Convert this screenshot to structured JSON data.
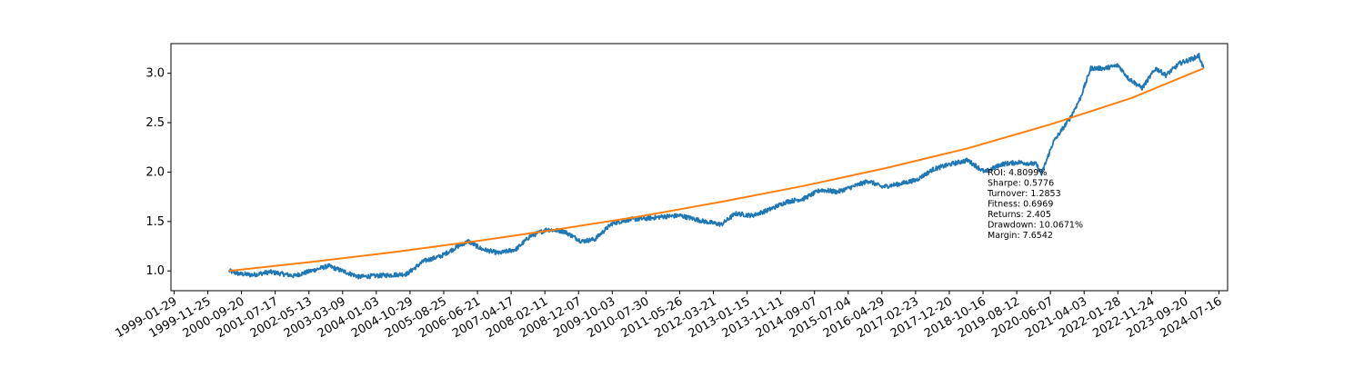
{
  "chart_data": {
    "type": "line",
    "title": "",
    "xlabel": "",
    "ylabel": "",
    "ylim": [
      0.8,
      3.3
    ],
    "xlim": [
      "1999-01-01",
      "2024-10-01"
    ],
    "grid": false,
    "legend": "none",
    "yticks": [
      "1.0",
      "1.5",
      "2.0",
      "2.5",
      "3.0"
    ],
    "xticks": [
      "1999-01-29",
      "1999-11-25",
      "2000-09-20",
      "2001-07-17",
      "2002-05-13",
      "2003-03-09",
      "2004-01-03",
      "2004-10-29",
      "2005-08-25",
      "2006-06-21",
      "2007-04-17",
      "2008-02-11",
      "2008-12-07",
      "2009-10-03",
      "2010-07-30",
      "2011-05-26",
      "2012-03-21",
      "2013-01-15",
      "2013-11-11",
      "2014-09-07",
      "2015-07-04",
      "2016-04-29",
      "2017-02-23",
      "2017-12-20",
      "2018-10-16",
      "2019-08-12",
      "2020-06-07",
      "2021-04-03",
      "2022-01-28",
      "2022-11-24",
      "2023-09-20",
      "2024-07-16"
    ],
    "series": [
      {
        "color": "#1f77b4",
        "points": [
          [
            "2000-06-01",
            1.0
          ],
          [
            "2000-09-01",
            0.97
          ],
          [
            "2001-01-01",
            0.96
          ],
          [
            "2001-06-01",
            0.99
          ],
          [
            "2002-01-01",
            0.95
          ],
          [
            "2002-06-01",
            1.0
          ],
          [
            "2002-11-01",
            1.05
          ],
          [
            "2003-04-01",
            0.99
          ],
          [
            "2003-08-01",
            0.94
          ],
          [
            "2004-01-01",
            0.95
          ],
          [
            "2004-06-01",
            0.96
          ],
          [
            "2004-10-01",
            0.97
          ],
          [
            "2005-03-01",
            1.1
          ],
          [
            "2005-08-01",
            1.15
          ],
          [
            "2006-01-01",
            1.25
          ],
          [
            "2006-04-01",
            1.3
          ],
          [
            "2006-08-01",
            1.22
          ],
          [
            "2007-01-01",
            1.18
          ],
          [
            "2007-06-01",
            1.22
          ],
          [
            "2007-10-01",
            1.35
          ],
          [
            "2008-03-01",
            1.42
          ],
          [
            "2008-08-01",
            1.4
          ],
          [
            "2009-01-01",
            1.3
          ],
          [
            "2009-05-01",
            1.32
          ],
          [
            "2009-10-01",
            1.48
          ],
          [
            "2010-03-01",
            1.52
          ],
          [
            "2010-08-01",
            1.53
          ],
          [
            "2011-01-01",
            1.55
          ],
          [
            "2011-06-01",
            1.56
          ],
          [
            "2012-01-01",
            1.5
          ],
          [
            "2012-06-01",
            1.47
          ],
          [
            "2012-10-01",
            1.58
          ],
          [
            "2013-03-01",
            1.56
          ],
          [
            "2013-08-01",
            1.62
          ],
          [
            "2014-01-01",
            1.7
          ],
          [
            "2014-06-01",
            1.73
          ],
          [
            "2014-11-01",
            1.82
          ],
          [
            "2015-04-01",
            1.8
          ],
          [
            "2015-09-01",
            1.86
          ],
          [
            "2016-01-01",
            1.91
          ],
          [
            "2016-05-01",
            1.85
          ],
          [
            "2016-10-01",
            1.88
          ],
          [
            "2017-03-01",
            1.92
          ],
          [
            "2017-08-01",
            2.03
          ],
          [
            "2018-01-01",
            2.08
          ],
          [
            "2018-06-01",
            2.12
          ],
          [
            "2018-11-01",
            2.0
          ],
          [
            "2019-04-01",
            2.08
          ],
          [
            "2019-09-01",
            2.1
          ],
          [
            "2020-02-01",
            2.08
          ],
          [
            "2020-03-20",
            1.98
          ],
          [
            "2020-07-01",
            2.3
          ],
          [
            "2020-12-01",
            2.55
          ],
          [
            "2021-03-01",
            2.75
          ],
          [
            "2021-06-01",
            3.05
          ],
          [
            "2021-10-01",
            3.05
          ],
          [
            "2022-02-01",
            3.08
          ],
          [
            "2022-05-01",
            2.95
          ],
          [
            "2022-09-01",
            2.85
          ],
          [
            "2023-01-01",
            3.05
          ],
          [
            "2023-04-01",
            2.98
          ],
          [
            "2023-08-01",
            3.1
          ],
          [
            "2023-12-01",
            3.15
          ],
          [
            "2024-01-20",
            3.18
          ],
          [
            "2024-03-01",
            3.05
          ]
        ]
      },
      {
        "color": "#ff7f0e",
        "points": [
          [
            "2000-06-01",
            1.0
          ],
          [
            "2002-06-01",
            1.09
          ],
          [
            "2004-06-01",
            1.19
          ],
          [
            "2006-06-01",
            1.3
          ],
          [
            "2008-06-01",
            1.42
          ],
          [
            "2010-06-01",
            1.55
          ],
          [
            "2012-06-01",
            1.7
          ],
          [
            "2014-06-01",
            1.86
          ],
          [
            "2016-06-01",
            2.04
          ],
          [
            "2018-06-01",
            2.24
          ],
          [
            "2020-06-01",
            2.48
          ],
          [
            "2022-06-01",
            2.75
          ],
          [
            "2024-03-01",
            3.05
          ]
        ]
      }
    ],
    "annotation": [
      "ROI: 4.8099%",
      "Sharpe: 0.5776",
      "Turnover: 1.2853",
      "Fitness: 0.6969",
      "Returns: 2.405",
      "Drawdown: 10.0671%",
      "Margin: 7.6542"
    ]
  }
}
